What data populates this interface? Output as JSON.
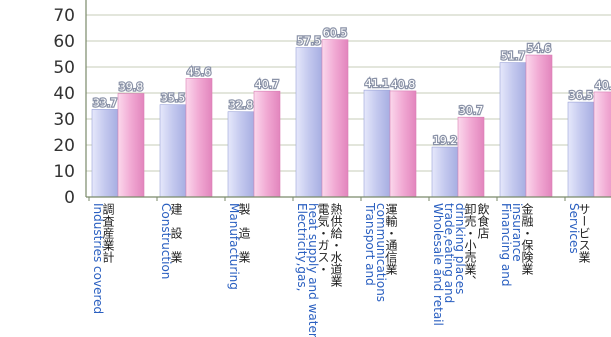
{
  "chart_data": {
    "type": "bar",
    "categories": [
      {
        "jp": [
          "調査産業計"
        ],
        "en": [
          "Industries covered"
        ]
      },
      {
        "jp": [
          "建　設　業"
        ],
        "en": [
          "Construction"
        ]
      },
      {
        "jp": [
          "製　造　業"
        ],
        "en": [
          "Manufacturing"
        ]
      },
      {
        "jp": [
          "電気・ガス・",
          "熱供給・水道業"
        ],
        "en": [
          "Electricity,gas,",
          "heat supply and water"
        ]
      },
      {
        "jp": [
          "運輸・通信業"
        ],
        "en": [
          "Transport and",
          "communications"
        ]
      },
      {
        "jp": [
          "卸売・小売業、",
          "飲食店"
        ],
        "en": [
          "Wholesale and retail",
          "trade,eating and",
          "drinking places"
        ]
      },
      {
        "jp": [
          "金融・保険業"
        ],
        "en": [
          "Financing and",
          "insurance"
        ]
      },
      {
        "jp": [
          "サービス業"
        ],
        "en": [
          "Services"
        ]
      }
    ],
    "series": [
      {
        "values": [
          33.7,
          35.5,
          32.8,
          57.5,
          41.1,
          19.2,
          51.7,
          36.5
        ],
        "color": "#c3c8ee"
      },
      {
        "values": [
          39.8,
          45.6,
          40.7,
          60.5,
          40.8,
          30.7,
          54.6,
          40.4
        ],
        "color": "#f1a9d3"
      }
    ],
    "y_ticks": [
      "0",
      "10",
      "20",
      "30",
      "40",
      "50",
      "60",
      "70"
    ],
    "ylim": [
      0,
      70
    ],
    "grid": true
  }
}
